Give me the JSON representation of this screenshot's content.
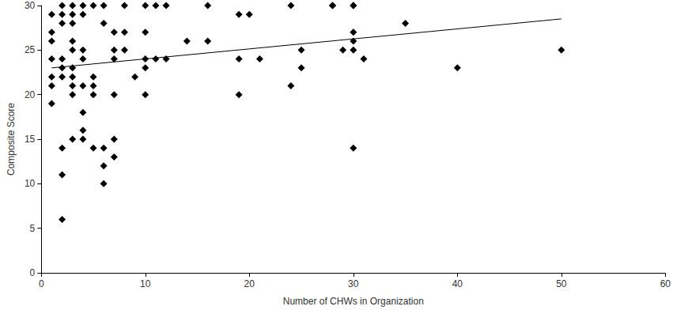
{
  "chart_data": {
    "type": "scatter",
    "xlabel": "Number of CHWs in Organization",
    "ylabel": "Composite Score",
    "xlim": [
      0,
      60
    ],
    "xticks": [
      0,
      10,
      20,
      30,
      40,
      50,
      60
    ],
    "ylim": [
      0,
      30
    ],
    "yticks": [
      0,
      5,
      10,
      15,
      20,
      25,
      30
    ],
    "grid": false,
    "series": [
      {
        "type": "scatter",
        "marker": "diamond",
        "color": "#000000",
        "x": [
          1,
          1,
          1,
          1,
          1,
          1,
          1,
          2,
          2,
          2,
          2,
          2,
          2,
          2,
          2,
          2,
          3,
          3,
          3,
          3,
          3,
          3,
          3,
          3,
          3,
          3,
          4,
          4,
          4,
          4,
          4,
          4,
          4,
          4,
          5,
          5,
          5,
          5,
          5,
          6,
          6,
          6,
          6,
          6,
          7,
          7,
          7,
          7,
          7,
          7,
          8,
          8,
          8,
          9,
          10,
          10,
          10,
          10,
          10,
          11,
          11,
          12,
          12,
          14,
          16,
          16,
          19,
          19,
          19,
          20,
          21,
          24,
          24,
          25,
          25,
          28,
          28,
          29,
          30,
          30,
          30,
          30,
          30,
          30,
          31,
          35,
          40,
          50
        ],
        "values": [
          29,
          27,
          26,
          24,
          22,
          21,
          19,
          30,
          29,
          28,
          24,
          23,
          22,
          14,
          11,
          6,
          30,
          29,
          28,
          26,
          25,
          23,
          22,
          21,
          20,
          15,
          30,
          29,
          25,
          24,
          21,
          18,
          16,
          15,
          30,
          22,
          21,
          20,
          14,
          30,
          28,
          14,
          12,
          10,
          27,
          25,
          24,
          20,
          15,
          13,
          30,
          27,
          25,
          22,
          30,
          27,
          24,
          23,
          20,
          30,
          24,
          30,
          24,
          26,
          30,
          26,
          29,
          24,
          20,
          29,
          24,
          30,
          21,
          25,
          23,
          30,
          30,
          25,
          30,
          30,
          27,
          26,
          25,
          14,
          24,
          28,
          23,
          25
        ]
      },
      {
        "type": "line",
        "line_style": "solid",
        "color": "#000000",
        "x": [
          1,
          50
        ],
        "values": [
          23,
          28.5
        ]
      }
    ]
  }
}
